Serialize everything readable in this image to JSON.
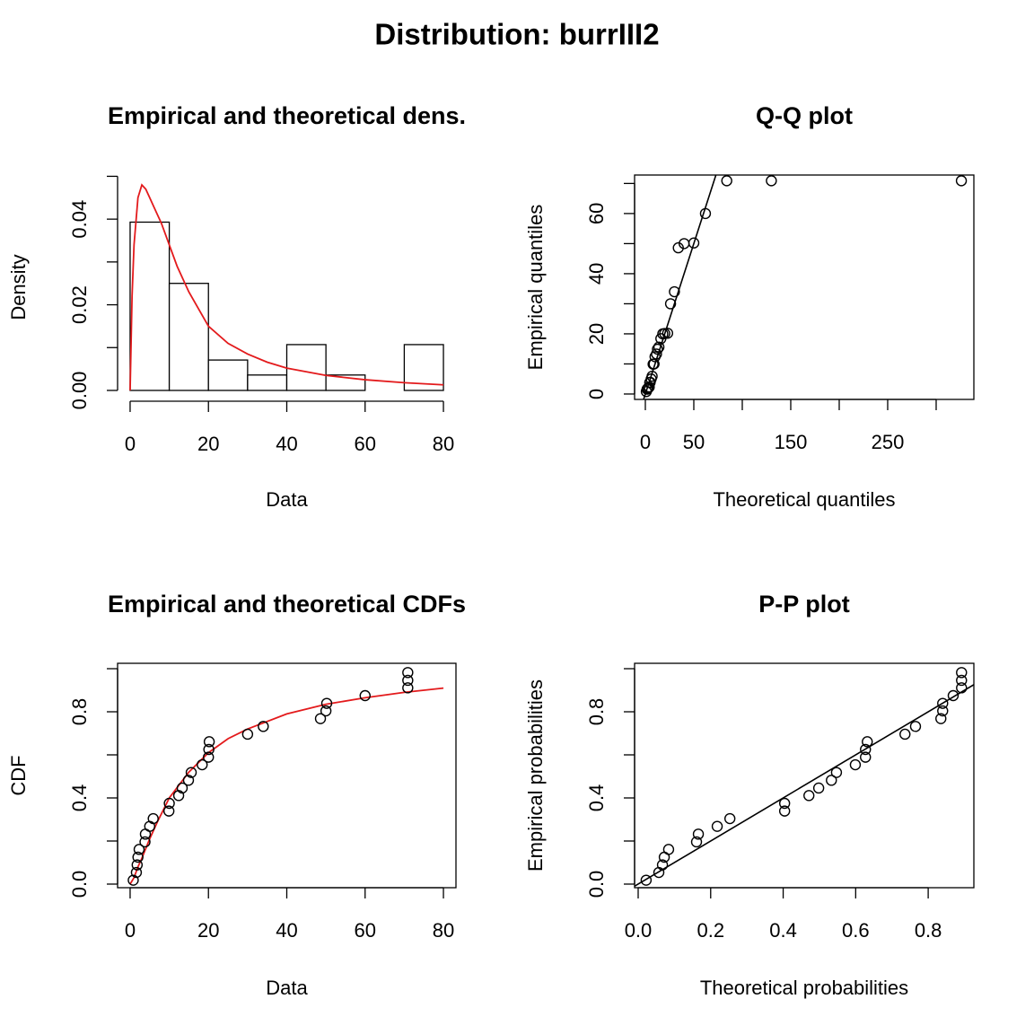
{
  "title": "Distribution: burrIII2",
  "chart_data": [
    {
      "type": "histogram",
      "title": "Empirical and theoretical dens.",
      "x_label": "Data",
      "y_label": "Density",
      "bins": [
        0,
        10,
        20,
        30,
        40,
        50,
        60,
        70,
        80
      ],
      "values": [
        0.0393,
        0.025,
        0.0071,
        0.0036,
        0.0107,
        0.0036,
        0,
        0.0107
      ],
      "fill": "#ffffff",
      "edge_color": "#000000",
      "curve": {
        "x": [
          0,
          0.5,
          1,
          2,
          3,
          4,
          5,
          6,
          8,
          10,
          12,
          15,
          20,
          25,
          30,
          35,
          40,
          50,
          60,
          70,
          80
        ],
        "values": [
          0,
          0.022,
          0.034,
          0.045,
          0.048,
          0.047,
          0.045,
          0.043,
          0.039,
          0.034,
          0.029,
          0.023,
          0.015,
          0.011,
          0.0085,
          0.0066,
          0.0052,
          0.0035,
          0.0025,
          0.0018,
          0.0013
        ],
        "color": "#e31a1c"
      },
      "xlim": [
        -3.2,
        83.2
      ],
      "ylim": [
        -0.0021,
        0.0503
      ],
      "xticks": [
        0,
        20,
        40,
        60,
        80
      ],
      "yticks": [
        {
          "value": 0,
          "label": "0.00"
        },
        {
          "value": 0.01,
          "label": null
        },
        {
          "value": 0.02,
          "label": "0.02"
        },
        {
          "value": 0.03,
          "label": null
        },
        {
          "value": 0.04,
          "label": "0.04"
        },
        {
          "value": 0.05,
          "label": null
        }
      ],
      "box": false
    },
    {
      "type": "scatter",
      "title": "Q-Q plot",
      "x_label": "Theoretical quantiles",
      "y_label": "Empirical quantiles",
      "x": [
        1,
        1.8,
        2.5,
        3,
        4,
        4.5,
        5,
        6,
        7,
        8,
        9,
        10,
        11.5,
        12.5,
        14,
        16,
        18,
        20,
        23,
        26,
        30,
        34,
        40,
        50,
        62,
        84,
        130,
        326
      ],
      "values": [
        0.8,
        1.6,
        1.8,
        2.0,
        2.3,
        3.8,
        3.9,
        5.0,
        5.9,
        9.9,
        10,
        12.4,
        13.3,
        14.9,
        15.6,
        18.4,
        20,
        20.1,
        20.2,
        30,
        34,
        48.6,
        50,
        50.2,
        60,
        70.9,
        70.9,
        70.9
      ],
      "color": "#000000",
      "reference_line": true,
      "line_color": "#000000",
      "xlim": [
        -11.1,
        338.9
      ],
      "ylim": [
        -1.8,
        72.8
      ],
      "xticks": [
        0,
        50,
        {
          "value": 100,
          "label": null
        },
        150,
        {
          "value": 200,
          "label": null
        },
        250,
        {
          "value": 300,
          "label": null
        }
      ],
      "yticks": [
        0,
        {
          "value": 10,
          "label": null
        },
        20,
        {
          "value": 30,
          "label": null
        },
        40,
        {
          "value": 50,
          "label": null
        },
        60,
        {
          "value": 70,
          "label": null
        }
      ],
      "box": true
    },
    {
      "type": "scatter",
      "title": "Empirical and theoretical CDFs",
      "x_label": "Data",
      "y_label": "CDF",
      "x": [
        0.8,
        1.6,
        1.8,
        2.0,
        2.3,
        3.8,
        3.9,
        5.0,
        5.9,
        9.9,
        10,
        12.4,
        13.3,
        14.9,
        15.6,
        18.4,
        20,
        20.1,
        20.2,
        30,
        34,
        48.6,
        50,
        50.2,
        60,
        70.9,
        70.9,
        70.9
      ],
      "values": [
        0.018,
        0.054,
        0.089,
        0.125,
        0.161,
        0.196,
        0.232,
        0.268,
        0.304,
        0.339,
        0.375,
        0.411,
        0.446,
        0.482,
        0.518,
        0.554,
        0.589,
        0.625,
        0.661,
        0.696,
        0.732,
        0.768,
        0.804,
        0.839,
        0.875,
        0.911,
        0.946,
        0.982
      ],
      "color": "#000000",
      "curve": {
        "x": [
          0,
          1,
          2,
          3,
          5,
          7,
          10,
          15,
          20,
          25,
          30,
          40,
          50,
          60,
          70,
          80
        ],
        "values": [
          0,
          0.03,
          0.08,
          0.12,
          0.21,
          0.29,
          0.4,
          0.52,
          0.61,
          0.675,
          0.72,
          0.79,
          0.835,
          0.865,
          0.89,
          0.91
        ],
        "color": "#e31a1c"
      },
      "xlim": [
        -3.2,
        83.2
      ],
      "ylim": [
        -0.0167,
        1.025
      ],
      "xticks": [
        0,
        20,
        40,
        60,
        80
      ],
      "yticks": [
        {
          "value": 0,
          "label": "0.0"
        },
        {
          "value": 0.2,
          "label": null
        },
        {
          "value": 0.4,
          "label": "0.4"
        },
        {
          "value": 0.6,
          "label": null
        },
        {
          "value": 0.8,
          "label": "0.8"
        },
        {
          "value": 1,
          "label": null
        }
      ],
      "box": true
    },
    {
      "type": "scatter",
      "title": "P-P plot",
      "x_label": "Theoretical probabilities",
      "y_label": "Empirical probabilities",
      "x": [
        0.022,
        0.057,
        0.067,
        0.072,
        0.084,
        0.161,
        0.166,
        0.218,
        0.253,
        0.404,
        0.404,
        0.471,
        0.498,
        0.533,
        0.547,
        0.599,
        0.627,
        0.627,
        0.632,
        0.736,
        0.765,
        0.835,
        0.84,
        0.84,
        0.869,
        0.892,
        0.892,
        0.892
      ],
      "values": [
        0.018,
        0.054,
        0.089,
        0.125,
        0.161,
        0.196,
        0.232,
        0.268,
        0.304,
        0.339,
        0.375,
        0.411,
        0.446,
        0.482,
        0.518,
        0.554,
        0.589,
        0.625,
        0.661,
        0.696,
        0.732,
        0.768,
        0.804,
        0.839,
        0.875,
        0.911,
        0.946,
        0.982
      ],
      "color": "#000000",
      "reference_line": true,
      "line_color": "#000000",
      "xlim": [
        -0.0099,
        0.926
      ],
      "ylim": [
        -0.0167,
        1.025
      ],
      "xticks": [
        {
          "value": 0,
          "label": "0.0"
        },
        {
          "value": 0.2,
          "label": "0.2"
        },
        {
          "value": 0.4,
          "label": "0.4"
        },
        {
          "value": 0.6,
          "label": "0.6"
        },
        {
          "value": 0.8,
          "label": "0.8"
        }
      ],
      "yticks": [
        {
          "value": 0,
          "label": "0.0"
        },
        {
          "value": 0.2,
          "label": null
        },
        {
          "value": 0.4,
          "label": "0.4"
        },
        {
          "value": 0.6,
          "label": null
        },
        {
          "value": 0.8,
          "label": "0.8"
        },
        {
          "value": 1,
          "label": null
        }
      ],
      "box": true
    }
  ]
}
